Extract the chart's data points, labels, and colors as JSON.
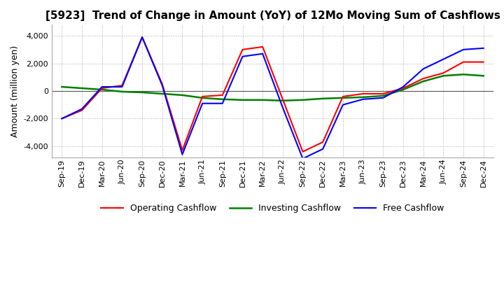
{
  "title": "[5923]  Trend of Change in Amount (YoY) of 12Mo Moving Sum of Cashflows",
  "ylabel": "Amount (million yen)",
  "ylim": [
    -4800,
    4800
  ],
  "yticks": [
    -4000,
    -2000,
    0,
    2000,
    4000
  ],
  "x_labels": [
    "Sep-19",
    "Dec-19",
    "Mar-20",
    "Jun-20",
    "Sep-20",
    "Dec-20",
    "Mar-21",
    "Jun-21",
    "Sep-21",
    "Dec-21",
    "Mar-22",
    "Jun-22",
    "Sep-22",
    "Dec-22",
    "Mar-23",
    "Jun-23",
    "Sep-23",
    "Dec-23",
    "Mar-24",
    "Jun-24",
    "Sep-24",
    "Dec-24"
  ],
  "operating": [
    -2000,
    -1400,
    200,
    400,
    3900,
    500,
    -4300,
    -400,
    -300,
    3000,
    3200,
    -600,
    -4400,
    -3700,
    -400,
    -200,
    -200,
    200,
    900,
    1300,
    2100,
    2100
  ],
  "investing": [
    300,
    200,
    100,
    -50,
    -100,
    -200,
    -300,
    -500,
    -600,
    -650,
    -650,
    -700,
    -650,
    -550,
    -500,
    -450,
    -350,
    100,
    700,
    1100,
    1200,
    1100
  ],
  "free": [
    -2000,
    -1300,
    300,
    300,
    3900,
    400,
    -4600,
    -900,
    -900,
    2500,
    2700,
    -1200,
    -4900,
    -4200,
    -1000,
    -600,
    -500,
    300,
    1600,
    2300,
    3000,
    3100
  ],
  "operating_color": "#ff0000",
  "investing_color": "#008000",
  "free_color": "#0000ff",
  "grid_color": "#aaaaaa",
  "background": "#ffffff",
  "title_fontsize": 11,
  "label_fontsize": 9,
  "tick_fontsize": 8,
  "legend_fontsize": 9
}
